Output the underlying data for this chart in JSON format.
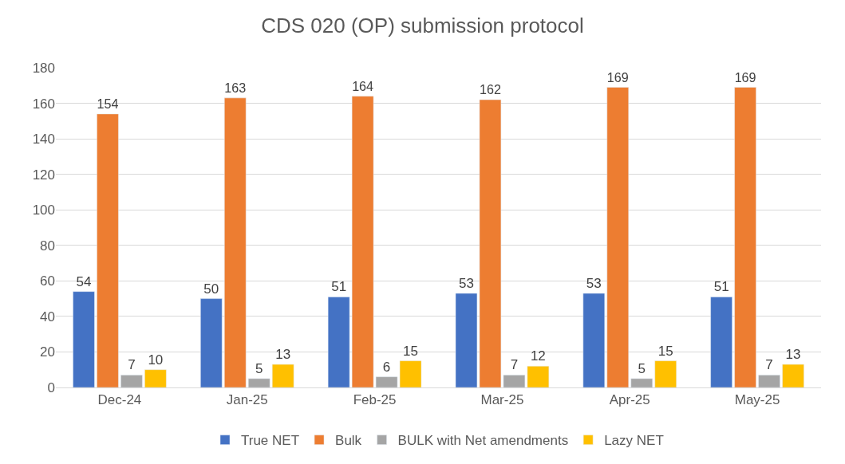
{
  "chart_data": {
    "type": "bar",
    "title": "CDS 020 (OP) submission protocol",
    "categories": [
      "Dec-24",
      "Jan-25",
      "Feb-25",
      "Mar-25",
      "Apr-25",
      "May-25"
    ],
    "series": [
      {
        "name": "True NET",
        "color": "#4472c4",
        "values": [
          54,
          50,
          51,
          53,
          53,
          51
        ]
      },
      {
        "name": "Bulk",
        "color": "#ed7d31",
        "values": [
          154,
          163,
          164,
          162,
          169,
          169
        ]
      },
      {
        "name": "BULK with Net amendments",
        "color": "#a5a5a5",
        "values": [
          7,
          5,
          6,
          7,
          5,
          7
        ]
      },
      {
        "name": "Lazy NET",
        "color": "#ffc000",
        "values": [
          10,
          13,
          15,
          12,
          15,
          13
        ]
      }
    ],
    "ylim": [
      0,
      180
    ],
    "yticks": [
      0,
      20,
      40,
      60,
      80,
      100,
      120,
      140,
      160,
      180
    ],
    "grid": "y",
    "legend": "bottom",
    "data_labels": true
  }
}
